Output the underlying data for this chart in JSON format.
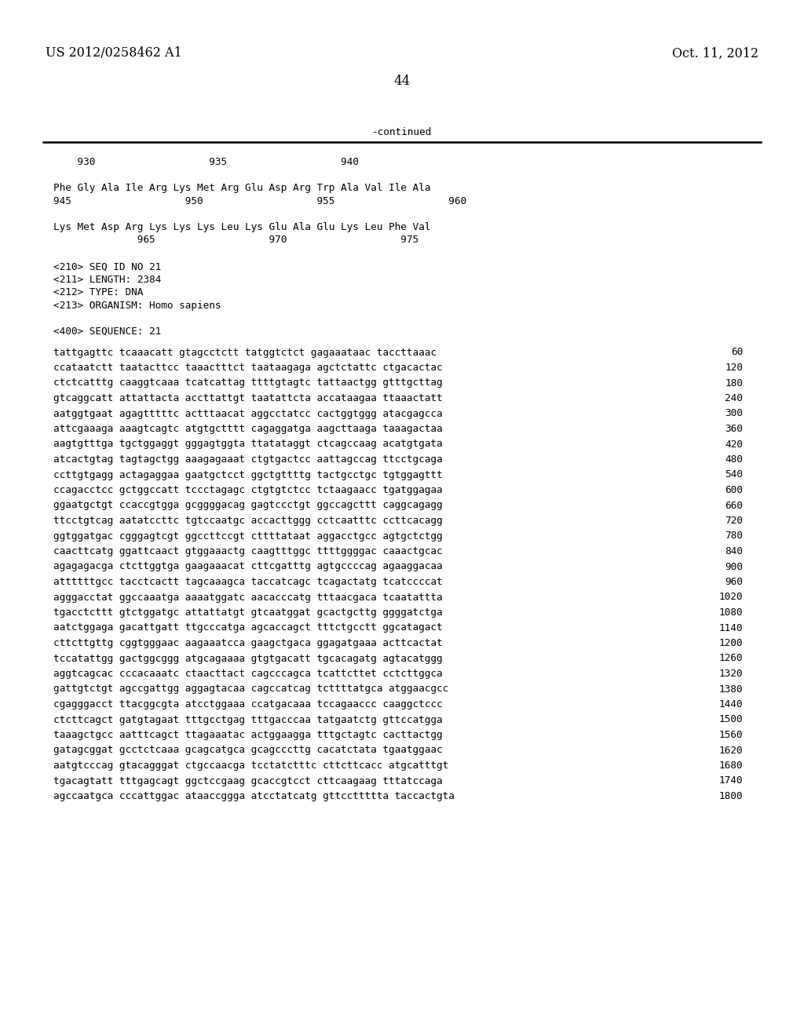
{
  "header_left": "US 2012/0258462 A1",
  "header_right": "Oct. 11, 2012",
  "page_number": "44",
  "continued_text": "-continued",
  "top_section": [
    "    930                   935                   940",
    "",
    "Phe Gly Ala Ile Arg Lys Met Arg Glu Asp Arg Trp Ala Val Ile Ala",
    "945                   950                   955                   960",
    "",
    "Lys Met Asp Arg Lys Lys Lys Leu Lys Glu Ala Glu Lys Leu Phe Val",
    "              965                   970                   975"
  ],
  "meta_section": [
    "<210> SEQ ID NO 21",
    "<211> LENGTH: 2384",
    "<212> TYPE: DNA",
    "<213> ORGANISM: Homo sapiens",
    "",
    "<400> SEQUENCE: 21"
  ],
  "sequence_lines": [
    [
      "tattgagttc tcaaacatt gtagcctctt tatggtctct gagaaataac taccttaaac",
      "60"
    ],
    [
      "ccataatctt taatacttcc taaactttct taataagaga agctctattc ctgacactac",
      "120"
    ],
    [
      "ctctcatttg caaggtcaaa tcatcattag ttttgtagtc tattaactgg gtttgcttag",
      "180"
    ],
    [
      "gtcaggcatt attattacta accttattgt taatattcta accataagaa ttaaactatt",
      "240"
    ],
    [
      "aatggtgaat agagtttttc actttaacat aggcctatcc cactggtggg atacgagcca",
      "300"
    ],
    [
      "attcgaaaga aaagtcagtc atgtgctttt cagaggatga aagcttaaga taaagactaa",
      "360"
    ],
    [
      "aagtgtttga tgctggaggt gggagtggta ttatataggt ctcagccaag acatgtgata",
      "420"
    ],
    [
      "atcactgtag tagtagctgg aaagagaaat ctgtgactcc aattagccag ttcctgcaga",
      "480"
    ],
    [
      "ccttgtgagg actagaggaa gaatgctcct ggctgttttg tactgcctgc tgtggagttt",
      "540"
    ],
    [
      "ccagacctcc gctggccatt tccctagagc ctgtgtctcc tctaagaacc tgatggagaa",
      "600"
    ],
    [
      "ggaatgctgt ccaccgtgga gcggggacag gagtccctgt ggccagcttt caggcagagg",
      "660"
    ],
    [
      "ttcctgtcag aatatccttc tgtccaatgc accacttggg cctcaatttc ccttcacagg",
      "720"
    ],
    [
      "ggtggatgac cgggagtcgt ggccttccgt cttttataat aggacctgcc agtgctctgg",
      "780"
    ],
    [
      "caacttcatg ggattcaact gtggaaactg caagtttggc ttttggggac caaactgcac",
      "840"
    ],
    [
      "agagagacga ctcttggtga gaagaaacat cttcgatttg agtgccccag agaaggacaa",
      "900"
    ],
    [
      "attttttgcc tacctcactt tagcaaagca taccatcagc tcagactatg tcatccccat",
      "960"
    ],
    [
      "agggacctat ggccaaatga aaaatggatc aacacccatg tttaacgaca tcaatattta",
      "1020"
    ],
    [
      "tgacctcttt gtctggatgc attattatgt gtcaatggat gcactgcttg ggggatctga",
      "1080"
    ],
    [
      "aatctggaga gacattgatt ttgcccatga agcaccagct tttctgcctt ggcatagact",
      "1140"
    ],
    [
      "cttcttgttg cggtgggaac aagaaatcca gaagctgaca ggagatgaaa acttcactat",
      "1200"
    ],
    [
      "tccatattgg gactggcggg atgcagaaaa gtgtgacatt tgcacagatg agtacatggg",
      "1260"
    ],
    [
      "aggtcagcac cccacaaatc ctaacttact cagcccagca tcattcttet cctcttggca",
      "1320"
    ],
    [
      "gattgtctgt agccgattgg aggagtacaa cagccatcag tcttttatgca atggaacgcc",
      "1380"
    ],
    [
      "cgagggacct ttacggcgta atcctggaaa ccatgacaaa tccagaaccc caaggctccc",
      "1440"
    ],
    [
      "ctcttcagct gatgtagaat tttgcctgag tttgacccaa tatgaatctg gttccatgga",
      "1500"
    ],
    [
      "taaagctgcc aatttcagct ttagaaatac actggaagga tttgctagtc cacttactgg",
      "1560"
    ],
    [
      "gatagcggat gcctctcaaa gcagcatgca gcagcccttg cacatctata tgaatggaac",
      "1620"
    ],
    [
      "aatgtcccag gtacagggat ctgccaacga tcctatctttc cttcttcacc atgcatttgt",
      "1680"
    ],
    [
      "tgacagtatt tttgagcagt ggctccgaag gcaccgtcct cttcaagaag tttatccaga",
      "1740"
    ],
    [
      "agccaatgca cccattggac ataaccggga atcctatcatg gttccttttta taccactgta",
      "1800"
    ]
  ]
}
